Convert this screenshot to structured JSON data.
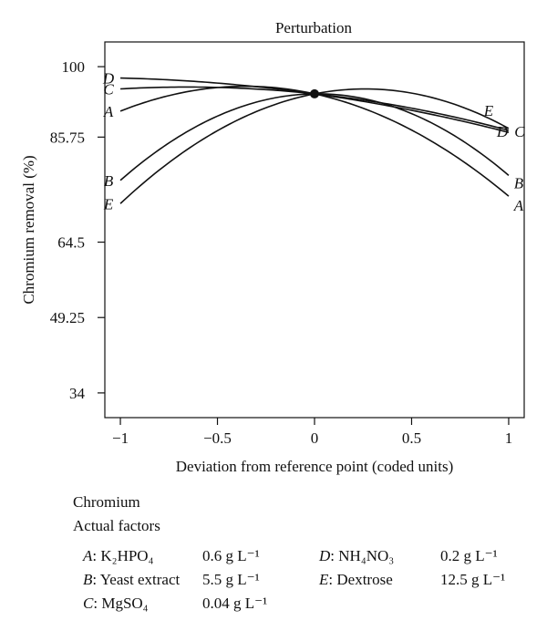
{
  "chart_data": {
    "type": "line",
    "title": "Perturbation",
    "xlabel": "Deviation from reference point (coded units)",
    "ylabel": "Chromium removal (%)",
    "xlim": [
      -1.08,
      1.08
    ],
    "ylim": [
      29,
      105
    ],
    "xticks": [
      -1,
      -0.5,
      0,
      0.5,
      1
    ],
    "xtick_labels": [
      "−1",
      "−0.5",
      "0",
      "0.5",
      "1"
    ],
    "yticks": [
      34,
      49.25,
      64.5,
      85.75,
      100
    ],
    "ytick_labels": [
      "34",
      "49.25",
      "64.5",
      "85.75",
      "100"
    ],
    "grid": false,
    "reference_point": {
      "x": 0,
      "y": 94.5
    },
    "series": [
      {
        "name": "A",
        "x": [
          -1,
          -0.5,
          0,
          0.5,
          1
        ],
        "y": [
          91.0,
          94.8,
          94.5,
          88.4,
          73.8
        ]
      },
      {
        "name": "B",
        "x": [
          -1,
          -0.5,
          0,
          0.5,
          1
        ],
        "y": [
          77.0,
          88.8,
          94.5,
          91.3,
          78.0
        ]
      },
      {
        "name": "C",
        "x": [
          -1,
          -0.5,
          0,
          0.5,
          1
        ],
        "y": [
          95.5,
          95.6,
          94.5,
          91.6,
          87.1
        ]
      },
      {
        "name": "D",
        "x": [
          -1,
          -0.5,
          0,
          0.5,
          1
        ],
        "y": [
          97.7,
          96.6,
          94.5,
          91.4,
          86.7
        ]
      },
      {
        "name": "E",
        "x": [
          -1,
          -0.5,
          0,
          0.5,
          1
        ],
        "y": [
          72.3,
          86.3,
          94.5,
          95.4,
          87.5
        ]
      }
    ]
  },
  "footer": {
    "response": "Chromium",
    "factors_title": "Actual factors",
    "factors": [
      {
        "letter": "A",
        "name": "K₂HPO₄",
        "value": "0.6 g L⁻¹"
      },
      {
        "letter": "B",
        "name": "Yeast extract",
        "value": "5.5 g L⁻¹"
      },
      {
        "letter": "C",
        "name": "MgSO₄",
        "value": "0.04 g L⁻¹"
      },
      {
        "letter": "D",
        "name": "NH₄NO₃",
        "value": "0.2 g L⁻¹"
      },
      {
        "letter": "E",
        "name": "Dextrose",
        "value": "12.5 g L⁻¹"
      }
    ]
  }
}
